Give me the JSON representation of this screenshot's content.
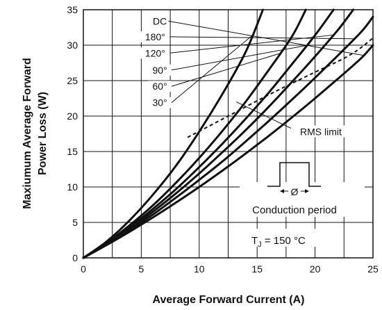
{
  "chart_data": {
    "type": "line",
    "title": "",
    "xlabel": "Average Forward Current (A)",
    "ylabel_lines": [
      "Maxiumum Average Forward",
      "Power Loss  (W)"
    ],
    "xlim": [
      0,
      25
    ],
    "ylim": [
      0,
      35
    ],
    "x_ticks": [
      0,
      5,
      10,
      15,
      20,
      25
    ],
    "y_ticks": [
      0,
      5,
      10,
      15,
      20,
      25,
      30,
      35
    ],
    "grid": true,
    "series": [
      {
        "name": "DC",
        "x": [
          0,
          2,
          4,
          6,
          8,
          10,
          12,
          14,
          16,
          18,
          20,
          22,
          24,
          25
        ],
        "y": [
          0,
          1.8,
          3.7,
          5.7,
          7.8,
          10,
          12.3,
          14.7,
          17.2,
          19.8,
          22.5,
          25.3,
          28.2,
          30
        ]
      },
      {
        "name": "180°",
        "x": [
          0,
          2,
          4,
          6,
          8,
          10,
          12,
          14,
          16,
          18,
          20,
          22,
          24,
          25
        ],
        "y": [
          0,
          1.9,
          3.9,
          6.1,
          8.5,
          11,
          13.6,
          16.4,
          19.3,
          22.3,
          25.4,
          28.6,
          31.9,
          34
        ]
      },
      {
        "name": "120°",
        "x": [
          0,
          2,
          4,
          6,
          8,
          10,
          12,
          14,
          16,
          18,
          20,
          22,
          23.3
        ],
        "y": [
          0,
          2,
          4.1,
          6.5,
          9.1,
          11.9,
          14.9,
          18,
          21.3,
          24.8,
          28.4,
          32.2,
          35
        ]
      },
      {
        "name": "90°",
        "x": [
          0,
          2,
          4,
          6,
          8,
          10,
          12,
          14,
          16,
          18,
          20,
          21.6
        ],
        "y": [
          0,
          2,
          4.3,
          6.9,
          9.7,
          12.8,
          16.1,
          19.6,
          23.3,
          27.3,
          31.4,
          35
        ]
      },
      {
        "name": "60°",
        "x": [
          0,
          2,
          4,
          6,
          8,
          10,
          12,
          14,
          16,
          18,
          19.2
        ],
        "y": [
          0,
          2.1,
          4.6,
          7.4,
          10.6,
          14.1,
          17.9,
          22,
          26.5,
          31.2,
          35
        ]
      },
      {
        "name": "30°",
        "x": [
          0,
          2,
          4,
          6,
          8,
          10,
          12,
          14,
          15.5
        ],
        "y": [
          0,
          2.3,
          5.3,
          8.9,
          13,
          17.8,
          23.1,
          29,
          35
        ]
      }
    ],
    "rms_limit": {
      "name": "RMS limit",
      "x": [
        9,
        12.5,
        16,
        19.5,
        23,
        25
      ],
      "y": [
        17,
        20,
        23,
        25.8,
        28.6,
        31
      ]
    },
    "curve_labels": [
      {
        "text": "DC",
        "x": 6.6,
        "y": 33
      },
      {
        "text": "180°",
        "x": 6.2,
        "y": 30.8
      },
      {
        "text": "120°",
        "x": 6.2,
        "y": 28.5
      },
      {
        "text": "90°",
        "x": 6.6,
        "y": 26.1
      },
      {
        "text": "60°",
        "x": 6.6,
        "y": 23.8
      },
      {
        "text": "30°",
        "x": 6.6,
        "y": 21.5
      }
    ],
    "rms_label": {
      "text": "RMS limit",
      "x": 20.5,
      "y": 17.5
    },
    "inset_label": "Conduction period",
    "inset_symbol": "Ø",
    "tj_label": {
      "main": "T",
      "sub": "J",
      "rest": " = 150 °C"
    },
    "colors": {
      "curves": "#111111",
      "grid": "#111111",
      "background": "#ffffff"
    }
  }
}
